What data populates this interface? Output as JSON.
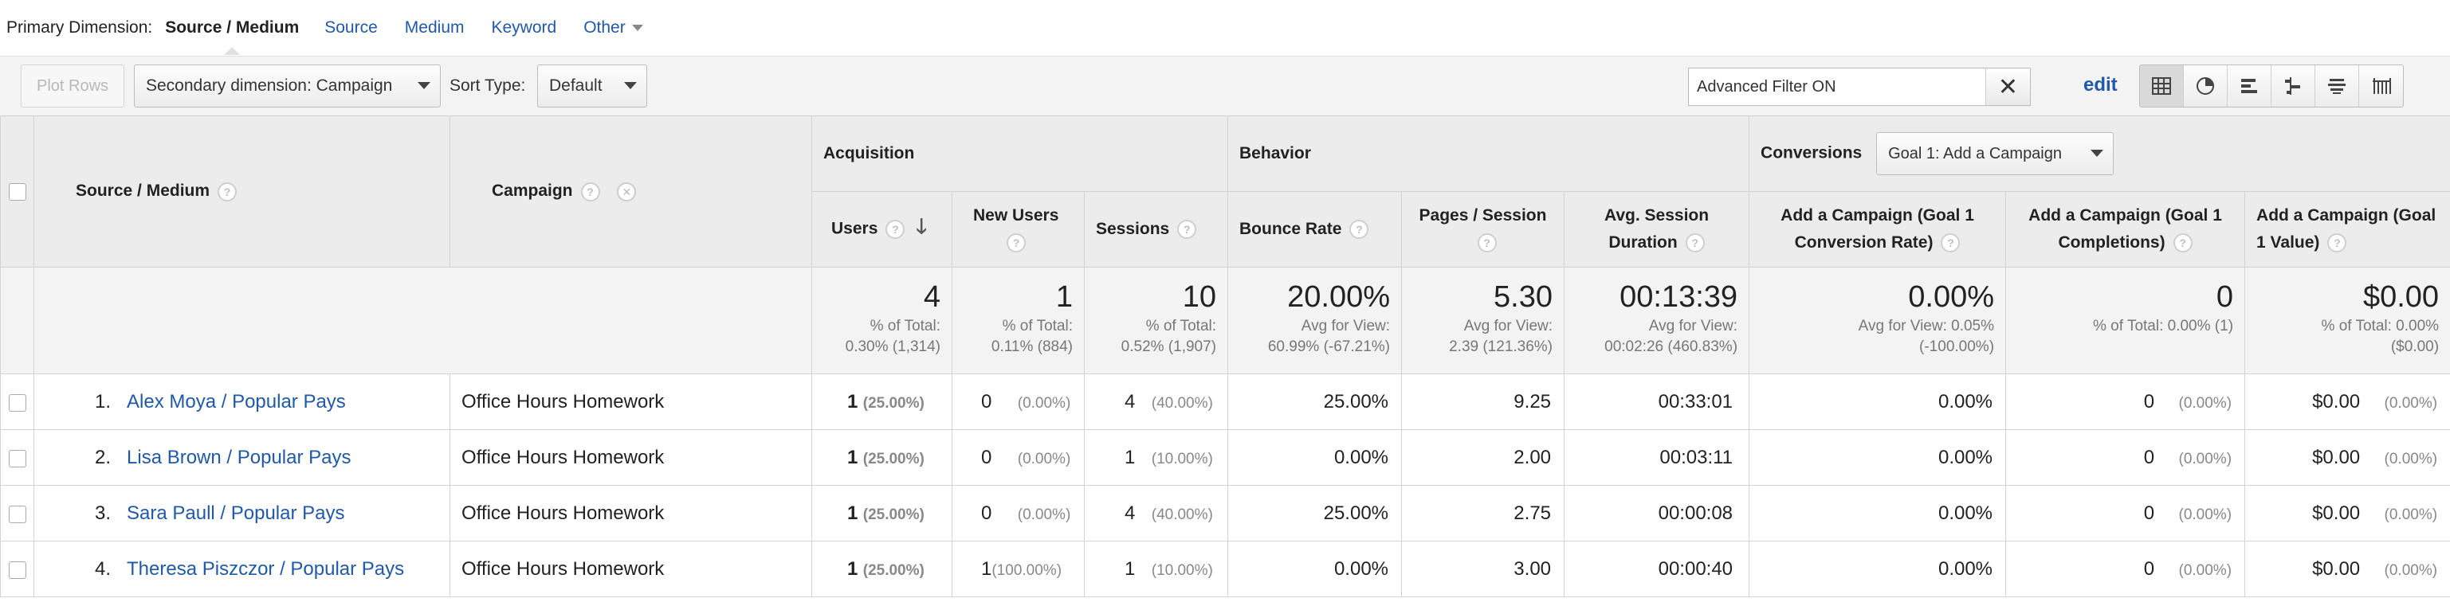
{
  "primary_dimension": {
    "label": "Primary Dimension:",
    "current": "Source / Medium",
    "options": [
      "Source",
      "Medium",
      "Keyword"
    ],
    "other": "Other"
  },
  "toolbar": {
    "plot_rows": "Plot Rows",
    "secondary_dimension": "Secondary dimension: Campaign",
    "sort_type_label": "Sort Type:",
    "sort_type_value": "Default",
    "filter_value": "Advanced Filter ON",
    "edit": "edit",
    "view_icons": [
      "table-view-icon",
      "pie-view-icon",
      "bar-view-icon",
      "comparison-view-icon",
      "term-cloud-view-icon",
      "pivot-view-icon"
    ]
  },
  "table": {
    "groups": {
      "acquisition": "Acquisition",
      "behavior": "Behavior",
      "conversions": "Conversions",
      "goal_select": "Goal 1: Add a Campaign"
    },
    "columns": {
      "source_medium": "Source / Medium",
      "campaign": "Campaign",
      "users": "Users",
      "new_users": "New Users",
      "sessions": "Sessions",
      "bounce_rate": "Bounce Rate",
      "pages_session": "Pages / Session",
      "avg_session_duration": "Avg. Session Duration",
      "conv_rate": "Add a Campaign (Goal 1 Conversion Rate)",
      "completions": "Add a Campaign (Goal 1 Completions)",
      "value": "Add a Campaign (Goal 1 Value)"
    },
    "totals": {
      "users": {
        "big": "4",
        "sub1": "% of Total:",
        "sub2": "0.30% (1,314)"
      },
      "new_users": {
        "big": "1",
        "sub1": "% of Total:",
        "sub2": "0.11% (884)"
      },
      "sessions": {
        "big": "10",
        "sub1": "% of Total:",
        "sub2": "0.52% (1,907)"
      },
      "bounce_rate": {
        "big": "20.00%",
        "sub1": "Avg for View:",
        "sub2": "60.99% (-67.21%)"
      },
      "pages_session": {
        "big": "5.30",
        "sub1": "Avg for View:",
        "sub2": "2.39 (121.36%)"
      },
      "avg_session_duration": {
        "big": "00:13:39",
        "sub1": "Avg for View:",
        "sub2": "00:02:26 (460.83%)"
      },
      "conv_rate": {
        "big": "0.00%",
        "sub1": "Avg for View: 0.05%",
        "sub2": "(-100.00%)"
      },
      "completions": {
        "big": "0",
        "sub1": "% of Total: 0.00% (1)",
        "sub2": ""
      },
      "value": {
        "big": "$0.00",
        "sub1": "% of Total: 0.00%",
        "sub2": "($0.00)"
      }
    },
    "rows": [
      {
        "index": "1.",
        "source": "Alex Moya / Popular Pays",
        "campaign": "Office Hours Homework",
        "users": "1",
        "users_pct": "(25.00%)",
        "new_users": "0",
        "new_users_pct": "(0.00%)",
        "sessions": "4",
        "sessions_pct": "(40.00%)",
        "bounce_rate": "25.00%",
        "pages_session": "9.25",
        "duration": "00:33:01",
        "conv_rate": "0.00%",
        "completions": "0",
        "completions_pct": "(0.00%)",
        "value": "$0.00",
        "value_pct": "(0.00%)"
      },
      {
        "index": "2.",
        "source": "Lisa Brown / Popular Pays",
        "campaign": "Office Hours Homework",
        "users": "1",
        "users_pct": "(25.00%)",
        "new_users": "0",
        "new_users_pct": "(0.00%)",
        "sessions": "1",
        "sessions_pct": "(10.00%)",
        "bounce_rate": "0.00%",
        "pages_session": "2.00",
        "duration": "00:03:11",
        "conv_rate": "0.00%",
        "completions": "0",
        "completions_pct": "(0.00%)",
        "value": "$0.00",
        "value_pct": "(0.00%)"
      },
      {
        "index": "3.",
        "source": "Sara Paull / Popular Pays",
        "campaign": "Office Hours Homework",
        "users": "1",
        "users_pct": "(25.00%)",
        "new_users": "0",
        "new_users_pct": "(0.00%)",
        "sessions": "4",
        "sessions_pct": "(40.00%)",
        "bounce_rate": "25.00%",
        "pages_session": "2.75",
        "duration": "00:00:08",
        "conv_rate": "0.00%",
        "completions": "0",
        "completions_pct": "(0.00%)",
        "value": "$0.00",
        "value_pct": "(0.00%)"
      },
      {
        "index": "4.",
        "source": "Theresa Piszczor / Popular Pays",
        "campaign": "Office Hours Homework",
        "users": "1",
        "users_pct": "(25.00%)",
        "new_users": "1",
        "new_users_pct": "(100.00%)",
        "sessions": "1",
        "sessions_pct": "(10.00%)",
        "bounce_rate": "0.00%",
        "pages_session": "3.00",
        "duration": "00:00:40",
        "conv_rate": "0.00%",
        "completions": "0",
        "completions_pct": "(0.00%)",
        "value": "$0.00",
        "value_pct": "(0.00%)"
      }
    ]
  }
}
